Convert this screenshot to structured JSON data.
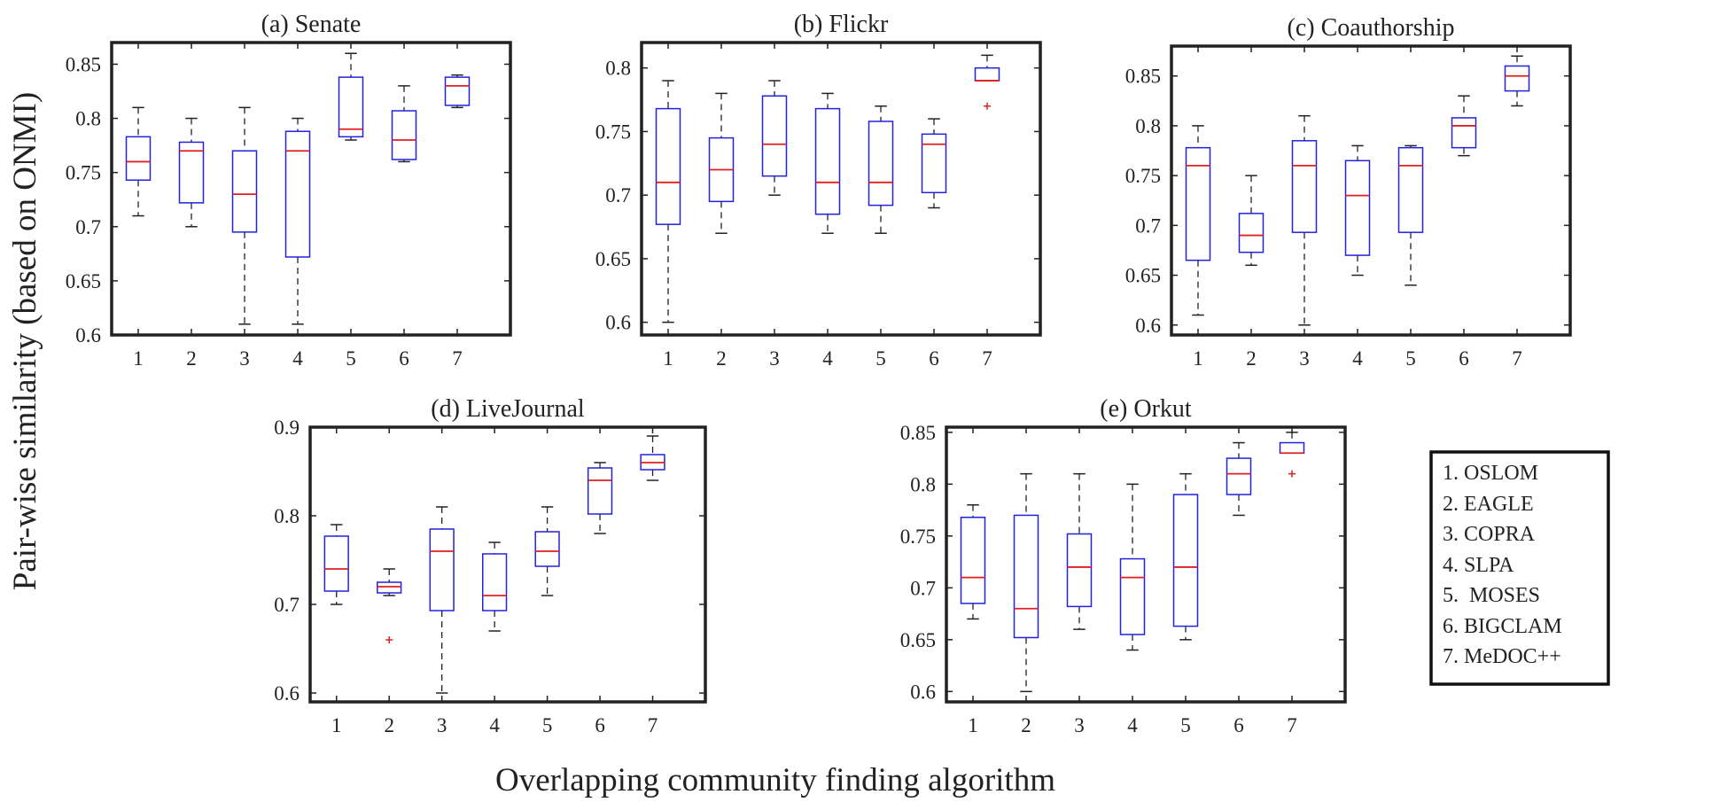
{
  "figure": {
    "ylabel": "Pair-wise similarity (based on ONMI)",
    "xlabel": "Overlapping community finding algorithm",
    "legend": [
      "1. OSLOM",
      "2. EAGLE",
      "3. COPRA",
      "4. SLPA",
      "5.  MOSES",
      "6. BIGCLAM",
      "7. MeDOC++"
    ]
  },
  "colors": {
    "box": "#2222dd",
    "median": "#e02020",
    "outlier": "#e02020",
    "whisker": "#222222",
    "frame": "#222222"
  },
  "chart_data": [
    {
      "type": "boxplot",
      "title": "(a) Senate",
      "categories": [
        "1",
        "2",
        "3",
        "4",
        "5",
        "6",
        "7"
      ],
      "ylim": [
        0.6,
        0.87
      ],
      "yticks": [
        0.6,
        0.65,
        0.7,
        0.75,
        0.8,
        0.85
      ],
      "ytick_labels": [
        "0.6",
        "0.65",
        "0.7",
        "0.75",
        "0.8",
        "0.85"
      ],
      "boxes": [
        {
          "min": 0.71,
          "q1": 0.743,
          "median": 0.76,
          "q3": 0.783,
          "max": 0.81,
          "outliers": []
        },
        {
          "min": 0.7,
          "q1": 0.722,
          "median": 0.77,
          "q3": 0.778,
          "max": 0.8,
          "outliers": []
        },
        {
          "min": 0.61,
          "q1": 0.695,
          "median": 0.73,
          "q3": 0.77,
          "max": 0.81,
          "outliers": []
        },
        {
          "min": 0.61,
          "q1": 0.672,
          "median": 0.77,
          "q3": 0.788,
          "max": 0.8,
          "outliers": []
        },
        {
          "min": 0.78,
          "q1": 0.783,
          "median": 0.79,
          "q3": 0.838,
          "max": 0.86,
          "outliers": []
        },
        {
          "min": 0.76,
          "q1": 0.762,
          "median": 0.78,
          "q3": 0.807,
          "max": 0.83,
          "outliers": []
        },
        {
          "min": 0.81,
          "q1": 0.812,
          "median": 0.83,
          "q3": 0.838,
          "max": 0.84,
          "outliers": []
        }
      ]
    },
    {
      "type": "boxplot",
      "title": "(b) Flickr",
      "categories": [
        "1",
        "2",
        "3",
        "4",
        "5",
        "6",
        "7"
      ],
      "ylim": [
        0.59,
        0.82
      ],
      "yticks": [
        0.6,
        0.65,
        0.7,
        0.75,
        0.8
      ],
      "ytick_labels": [
        "0.6",
        "0.65",
        "0.7",
        "0.75",
        "0.8"
      ],
      "boxes": [
        {
          "min": 0.6,
          "q1": 0.677,
          "median": 0.71,
          "q3": 0.768,
          "max": 0.79,
          "outliers": []
        },
        {
          "min": 0.67,
          "q1": 0.695,
          "median": 0.72,
          "q3": 0.745,
          "max": 0.78,
          "outliers": []
        },
        {
          "min": 0.7,
          "q1": 0.715,
          "median": 0.74,
          "q3": 0.778,
          "max": 0.79,
          "outliers": []
        },
        {
          "min": 0.67,
          "q1": 0.685,
          "median": 0.71,
          "q3": 0.768,
          "max": 0.78,
          "outliers": []
        },
        {
          "min": 0.67,
          "q1": 0.692,
          "median": 0.71,
          "q3": 0.758,
          "max": 0.77,
          "outliers": []
        },
        {
          "min": 0.69,
          "q1": 0.702,
          "median": 0.74,
          "q3": 0.748,
          "max": 0.76,
          "outliers": []
        },
        {
          "min": 0.79,
          "q1": 0.79,
          "median": 0.79,
          "q3": 0.8,
          "max": 0.81,
          "outliers": [
            0.77
          ]
        }
      ]
    },
    {
      "type": "boxplot",
      "title": "(c) Coauthorship",
      "categories": [
        "1",
        "2",
        "3",
        "4",
        "5",
        "6",
        "7"
      ],
      "ylim": [
        0.59,
        0.88
      ],
      "yticks": [
        0.6,
        0.65,
        0.7,
        0.75,
        0.8,
        0.85
      ],
      "ytick_labels": [
        "0.6",
        "0.65",
        "0.7",
        "0.75",
        "0.8",
        "0.85"
      ],
      "boxes": [
        {
          "min": 0.61,
          "q1": 0.665,
          "median": 0.76,
          "q3": 0.778,
          "max": 0.8,
          "outliers": []
        },
        {
          "min": 0.66,
          "q1": 0.673,
          "median": 0.69,
          "q3": 0.712,
          "max": 0.75,
          "outliers": []
        },
        {
          "min": 0.6,
          "q1": 0.693,
          "median": 0.76,
          "q3": 0.785,
          "max": 0.81,
          "outliers": []
        },
        {
          "min": 0.65,
          "q1": 0.67,
          "median": 0.73,
          "q3": 0.765,
          "max": 0.78,
          "outliers": []
        },
        {
          "min": 0.64,
          "q1": 0.693,
          "median": 0.76,
          "q3": 0.778,
          "max": 0.78,
          "outliers": []
        },
        {
          "min": 0.77,
          "q1": 0.778,
          "median": 0.8,
          "q3": 0.808,
          "max": 0.83,
          "outliers": []
        },
        {
          "min": 0.82,
          "q1": 0.835,
          "median": 0.85,
          "q3": 0.86,
          "max": 0.87,
          "outliers": []
        }
      ]
    },
    {
      "type": "boxplot",
      "title": "(d) LiveJournal",
      "categories": [
        "1",
        "2",
        "3",
        "4",
        "5",
        "6",
        "7"
      ],
      "ylim": [
        0.59,
        0.9
      ],
      "yticks": [
        0.6,
        0.7,
        0.8,
        0.9
      ],
      "ytick_labels": [
        "0.6",
        "0.7",
        "0.8",
        "0.9"
      ],
      "boxes": [
        {
          "min": 0.7,
          "q1": 0.715,
          "median": 0.74,
          "q3": 0.777,
          "max": 0.79,
          "outliers": []
        },
        {
          "min": 0.71,
          "q1": 0.713,
          "median": 0.72,
          "q3": 0.725,
          "max": 0.74,
          "outliers": [
            0.66
          ]
        },
        {
          "min": 0.6,
          "q1": 0.693,
          "median": 0.76,
          "q3": 0.785,
          "max": 0.81,
          "outliers": []
        },
        {
          "min": 0.67,
          "q1": 0.693,
          "median": 0.71,
          "q3": 0.757,
          "max": 0.77,
          "outliers": []
        },
        {
          "min": 0.71,
          "q1": 0.743,
          "median": 0.76,
          "q3": 0.782,
          "max": 0.81,
          "outliers": []
        },
        {
          "min": 0.78,
          "q1": 0.802,
          "median": 0.84,
          "q3": 0.854,
          "max": 0.86,
          "outliers": []
        },
        {
          "min": 0.84,
          "q1": 0.852,
          "median": 0.86,
          "q3": 0.869,
          "max": 0.89,
          "outliers": []
        }
      ]
    },
    {
      "type": "boxplot",
      "title": "(e) Orkut",
      "categories": [
        "1",
        "2",
        "3",
        "4",
        "5",
        "6",
        "7"
      ],
      "ylim": [
        0.59,
        0.855
      ],
      "yticks": [
        0.6,
        0.65,
        0.7,
        0.75,
        0.8,
        0.85
      ],
      "ytick_labels": [
        "0.6",
        "0.65",
        "0.7",
        "0.75",
        "0.8",
        "0.85"
      ],
      "boxes": [
        {
          "min": 0.67,
          "q1": 0.685,
          "median": 0.71,
          "q3": 0.768,
          "max": 0.78,
          "outliers": []
        },
        {
          "min": 0.6,
          "q1": 0.652,
          "median": 0.68,
          "q3": 0.77,
          "max": 0.81,
          "outliers": []
        },
        {
          "min": 0.66,
          "q1": 0.682,
          "median": 0.72,
          "q3": 0.752,
          "max": 0.81,
          "outliers": []
        },
        {
          "min": 0.64,
          "q1": 0.655,
          "median": 0.71,
          "q3": 0.728,
          "max": 0.8,
          "outliers": []
        },
        {
          "min": 0.65,
          "q1": 0.663,
          "median": 0.72,
          "q3": 0.79,
          "max": 0.81,
          "outliers": []
        },
        {
          "min": 0.77,
          "q1": 0.79,
          "median": 0.81,
          "q3": 0.825,
          "max": 0.84,
          "outliers": []
        },
        {
          "min": 0.83,
          "q1": 0.83,
          "median": 0.83,
          "q3": 0.84,
          "max": 0.85,
          "outliers": [
            0.81
          ]
        }
      ]
    }
  ]
}
